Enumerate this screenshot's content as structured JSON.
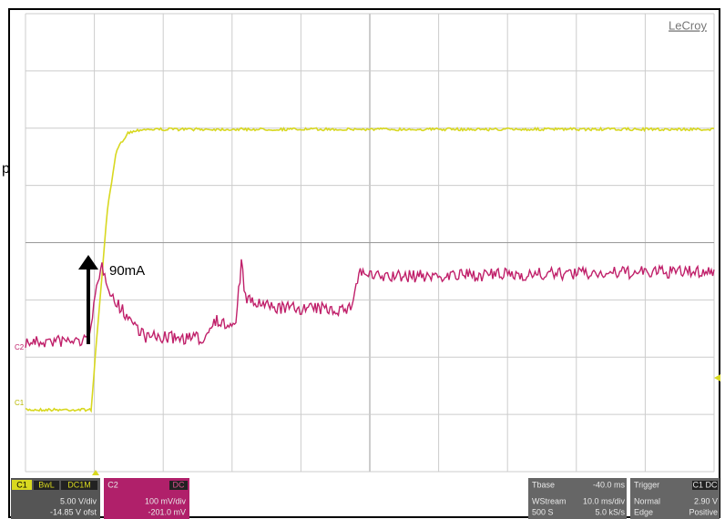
{
  "brand": "LeCroy",
  "annotation": {
    "stray": "p",
    "arrow_label": "90mA"
  },
  "trace_markers": {
    "c2": "C2",
    "c1": "C1"
  },
  "channel_1": {
    "id": "C1",
    "flags": [
      "BwL",
      "DC1M"
    ],
    "scale": "5.00 V/div",
    "offset": "-14.85 V ofst"
  },
  "channel_2": {
    "id": "C2",
    "coupling": "DC",
    "scale": "100 mV/div",
    "offset": "-201.0 mV"
  },
  "timebase": {
    "label": "Tbase",
    "value": "-40.0 ms",
    "mode": "WStream",
    "div": "10.0 ms/div",
    "samples": "500 S",
    "rate": "5.0 kS/s"
  },
  "trigger": {
    "label": "Trigger",
    "source": "C1 DC",
    "mode": "Normal",
    "level": "2.90 V",
    "type": "Edge",
    "slope": "Positive"
  }
}
